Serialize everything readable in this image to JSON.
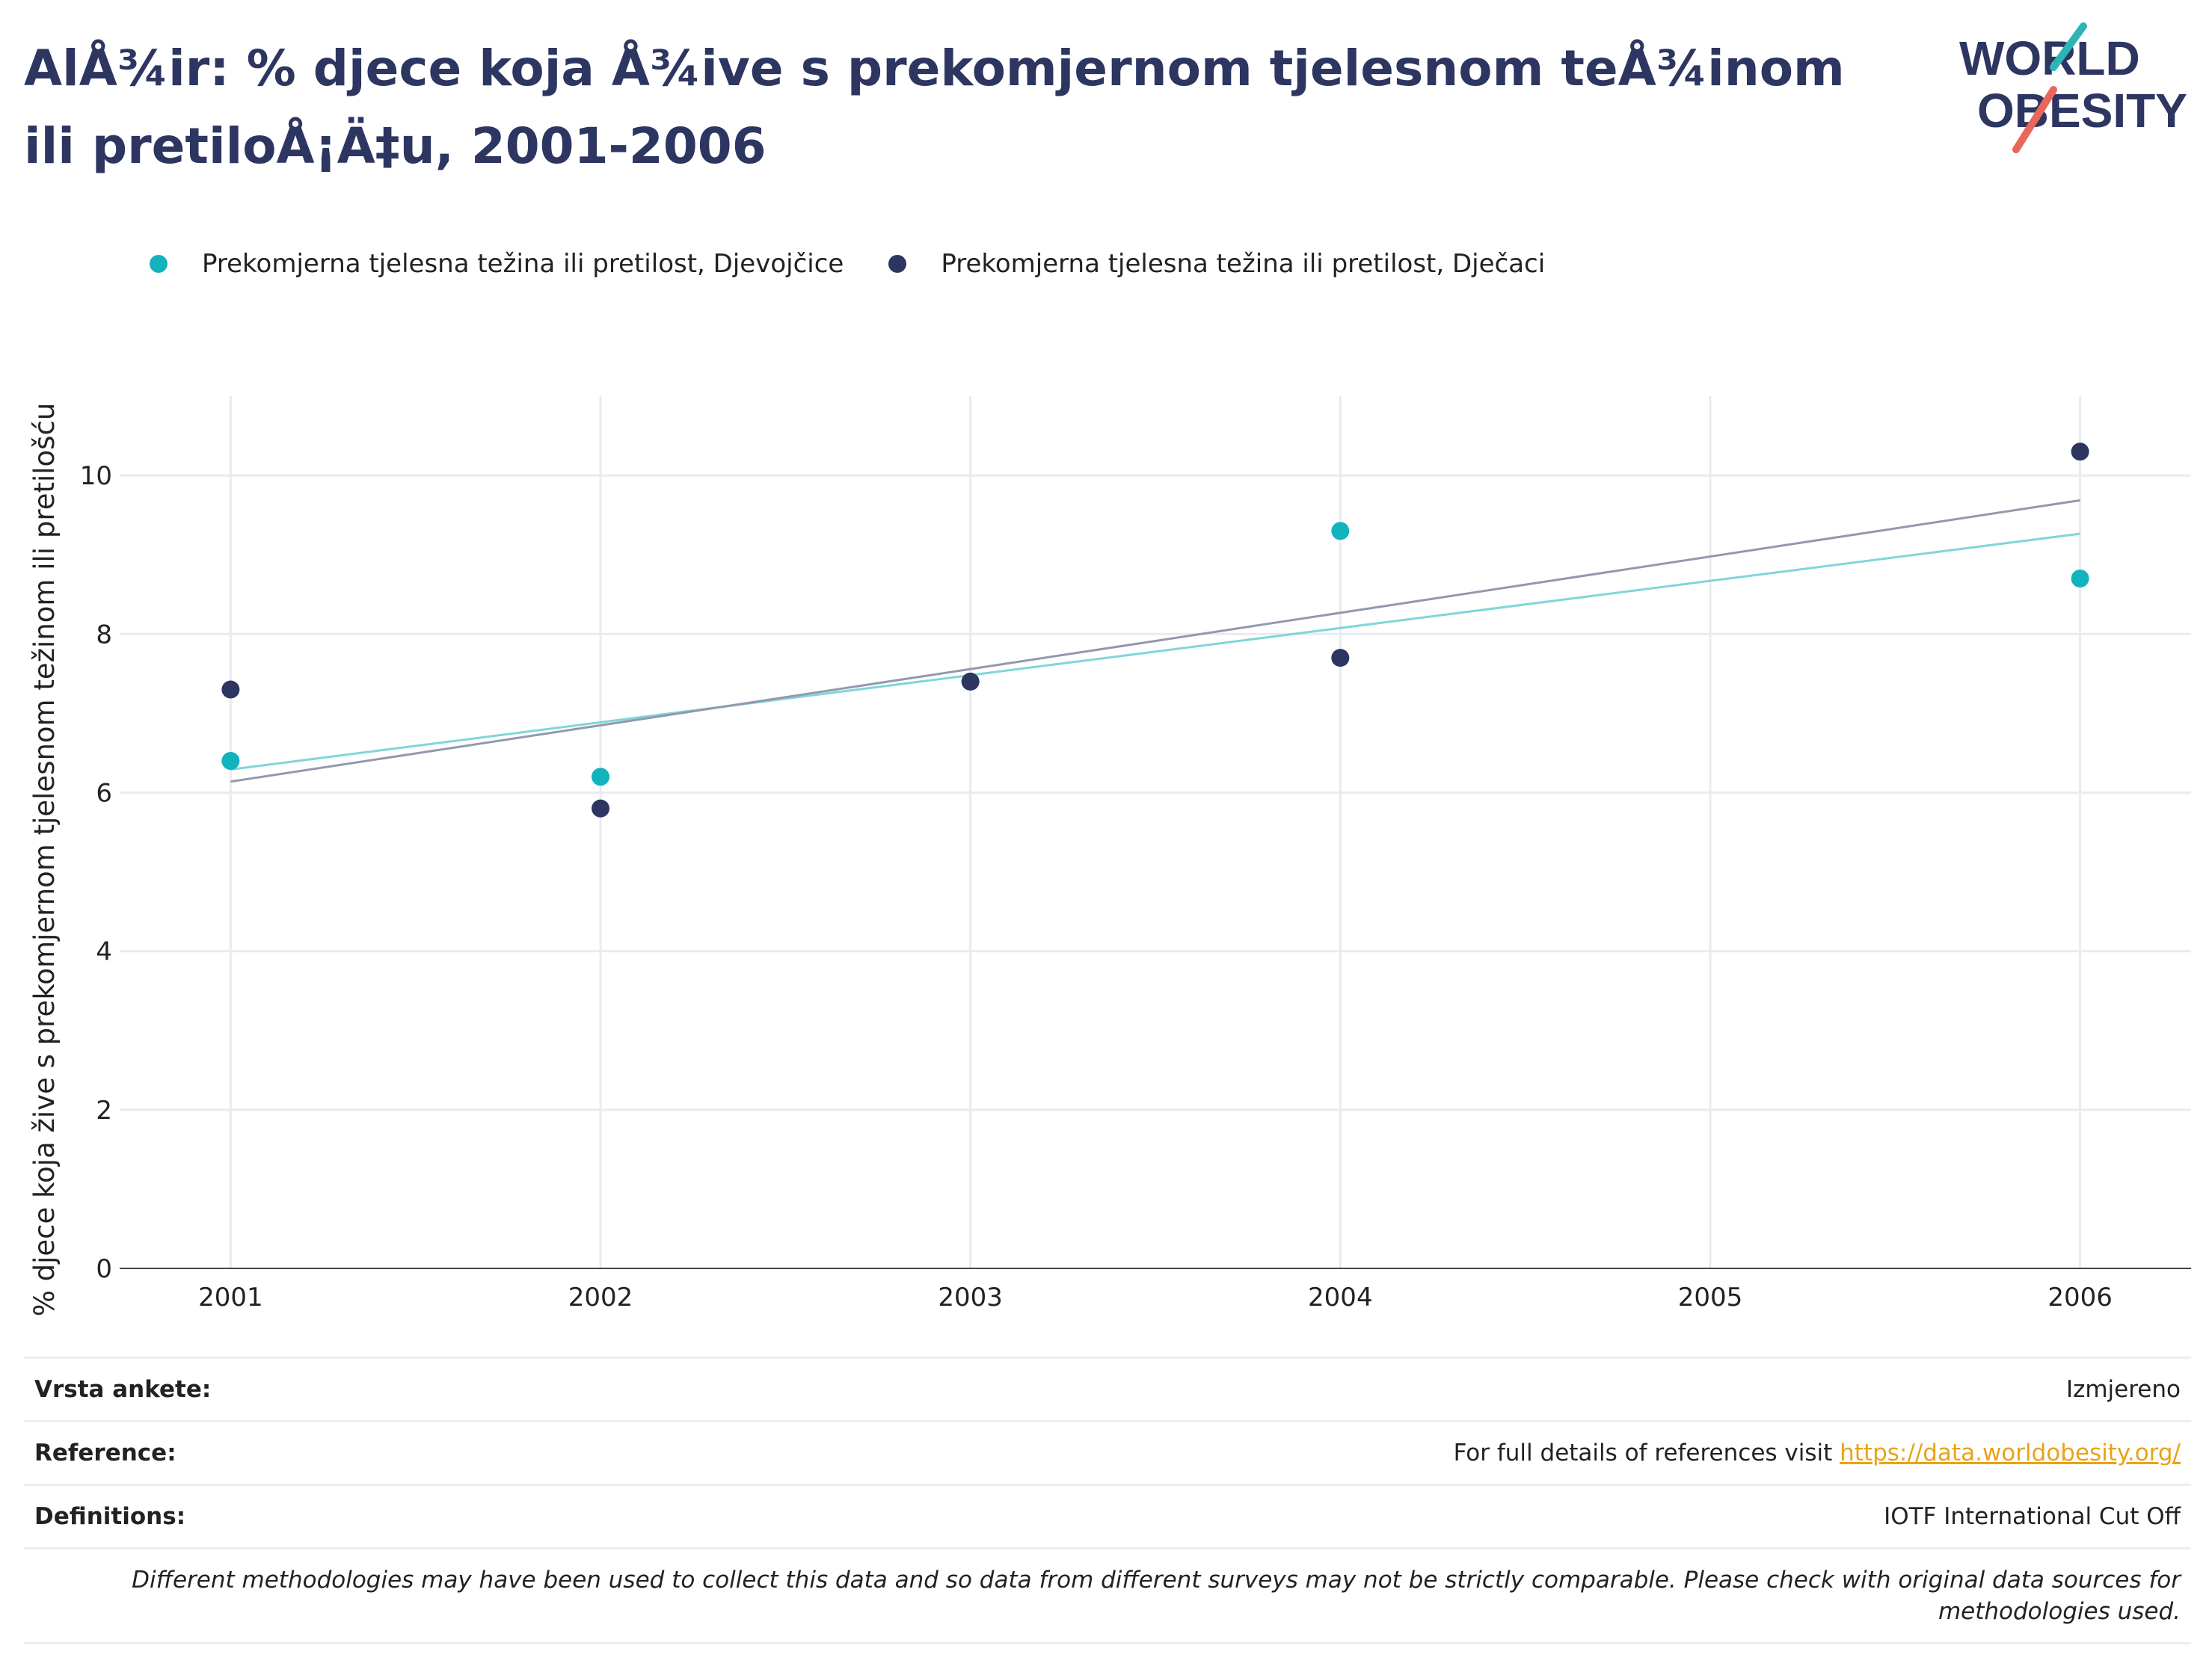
{
  "title": "AlÅ¾ir: % djece koja Å¾ive s prekomjernom tjelesnom teÅ¾inom ili pretiloÅ¡Ä‡u, 2001-2006",
  "logo": {
    "line1": "WORLD",
    "line2": "OBESITY",
    "accent_colors": [
      "#2db5b5",
      "#e8675a"
    ]
  },
  "chart_data": {
    "type": "scatter",
    "title": "AlÅ¾ir: % djece koja Å¾ive s prekomjernom tjelesnom teÅ¾inom ili pretiloÅ¡Ä‡u, 2001-2006",
    "xlabel": "",
    "ylabel": "% djece koja žive s prekomjernom tjelesnom težinom ili pretilošću",
    "x_ticks": [
      "2001",
      "2002",
      "2003",
      "2004",
      "2005",
      "2006"
    ],
    "y_ticks": [
      "0",
      "2",
      "4",
      "6",
      "8",
      "10"
    ],
    "xlim": [
      2000.7,
      2006.3
    ],
    "ylim": [
      0,
      11
    ],
    "grid": true,
    "legend_position": "top-left",
    "trendlines": true,
    "series": [
      {
        "name": "Prekomjerna tjelesna težina ili pretilost, Djevojčice",
        "color": "#12b3bd",
        "trend_color": "#7fd6da",
        "points": [
          [
            2001,
            6.4
          ],
          [
            2002,
            6.2
          ],
          [
            2003,
            7.4
          ],
          [
            2004,
            9.3
          ],
          [
            2006,
            8.7
          ]
        ]
      },
      {
        "name": "Prekomjerna tjelesna težina ili pretilost, Dječaci",
        "color": "#2d3561",
        "trend_color": "#9398ad",
        "points": [
          [
            2001,
            7.3
          ],
          [
            2002,
            5.8
          ],
          [
            2003,
            7.4
          ],
          [
            2004,
            7.7
          ],
          [
            2006,
            10.3
          ]
        ]
      }
    ]
  },
  "meta": {
    "survey_label": "Vrsta ankete:",
    "survey_value": "Izmjereno",
    "reference_label": "Reference:",
    "reference_text": "For full details of references visit ",
    "reference_link": "https://data.worldobesity.org/",
    "definitions_label": "Definitions:",
    "definitions_value": "IOTF International Cut Off",
    "note": "Different methodologies may have been used to collect this data and so data from different surveys may not be strictly comparable. Please check with original data sources for methodologies used."
  }
}
